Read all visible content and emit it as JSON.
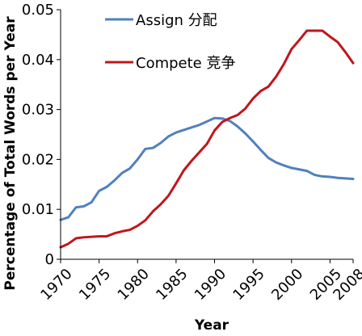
{
  "chart_data": {
    "type": "line",
    "title": "",
    "xlabel": "Year",
    "ylabel": "Percentage of Total Words per Year",
    "xlim": [
      1970,
      2008
    ],
    "ylim": [
      0,
      0.05
    ],
    "x_ticks": [
      1970,
      1975,
      1980,
      1985,
      1990,
      1995,
      2000,
      2005,
      2008
    ],
    "y_ticks": [
      "0",
      "0.01",
      "0.02",
      "0.03",
      "0.04",
      "0.05"
    ],
    "y_tick_values": [
      0,
      0.01,
      0.02,
      0.03,
      0.04,
      0.05
    ],
    "grid": false,
    "legend": "top-center",
    "series": [
      {
        "name": "Assign 分配",
        "color": "#4f81bd",
        "points": [
          [
            1970,
            0.0079
          ],
          [
            1971,
            0.0084
          ],
          [
            1972,
            0.0104
          ],
          [
            1973,
            0.0106
          ],
          [
            1974,
            0.0114
          ],
          [
            1975,
            0.0137
          ],
          [
            1976,
            0.0145
          ],
          [
            1977,
            0.0158
          ],
          [
            1978,
            0.0173
          ],
          [
            1979,
            0.0182
          ],
          [
            1980,
            0.02
          ],
          [
            1981,
            0.0221
          ],
          [
            1982,
            0.0223
          ],
          [
            1983,
            0.0233
          ],
          [
            1984,
            0.0246
          ],
          [
            1985,
            0.0254
          ],
          [
            1986,
            0.0259
          ],
          [
            1987,
            0.0264
          ],
          [
            1988,
            0.0269
          ],
          [
            1989,
            0.0276
          ],
          [
            1990,
            0.0283
          ],
          [
            1991,
            0.0282
          ],
          [
            1992,
            0.0277
          ],
          [
            1993,
            0.0266
          ],
          [
            1994,
            0.0252
          ],
          [
            1995,
            0.0236
          ],
          [
            1996,
            0.0219
          ],
          [
            1997,
            0.0203
          ],
          [
            1998,
            0.0194
          ],
          [
            1999,
            0.0188
          ],
          [
            2000,
            0.0183
          ],
          [
            2001,
            0.018
          ],
          [
            2002,
            0.0177
          ],
          [
            2003,
            0.0169
          ],
          [
            2004,
            0.0166
          ],
          [
            2005,
            0.0165
          ],
          [
            2006,
            0.0163
          ],
          [
            2007,
            0.0162
          ],
          [
            2008,
            0.0161
          ]
        ]
      },
      {
        "name": "Compete 竞争",
        "color": "#c0161a",
        "points": [
          [
            1970,
            0.0024
          ],
          [
            1971,
            0.0031
          ],
          [
            1972,
            0.0042
          ],
          [
            1973,
            0.0044
          ],
          [
            1974,
            0.0045
          ],
          [
            1975,
            0.0046
          ],
          [
            1976,
            0.0046
          ],
          [
            1977,
            0.0052
          ],
          [
            1978,
            0.0056
          ],
          [
            1979,
            0.0059
          ],
          [
            1980,
            0.0067
          ],
          [
            1981,
            0.0078
          ],
          [
            1982,
            0.0096
          ],
          [
            1983,
            0.011
          ],
          [
            1984,
            0.0127
          ],
          [
            1985,
            0.0152
          ],
          [
            1986,
            0.0178
          ],
          [
            1987,
            0.0197
          ],
          [
            1988,
            0.0214
          ],
          [
            1989,
            0.0231
          ],
          [
            1990,
            0.0258
          ],
          [
            1991,
            0.0275
          ],
          [
            1992,
            0.0283
          ],
          [
            1993,
            0.0289
          ],
          [
            1994,
            0.0302
          ],
          [
            1995,
            0.0322
          ],
          [
            1996,
            0.0337
          ],
          [
            1997,
            0.0346
          ],
          [
            1998,
            0.0366
          ],
          [
            1999,
            0.0391
          ],
          [
            2000,
            0.0421
          ],
          [
            2001,
            0.0439
          ],
          [
            2002,
            0.0458
          ],
          [
            2003,
            0.0458
          ],
          [
            2004,
            0.0458
          ],
          [
            2005,
            0.0446
          ],
          [
            2006,
            0.0435
          ],
          [
            2007,
            0.0415
          ],
          [
            2008,
            0.0393
          ]
        ]
      }
    ]
  }
}
